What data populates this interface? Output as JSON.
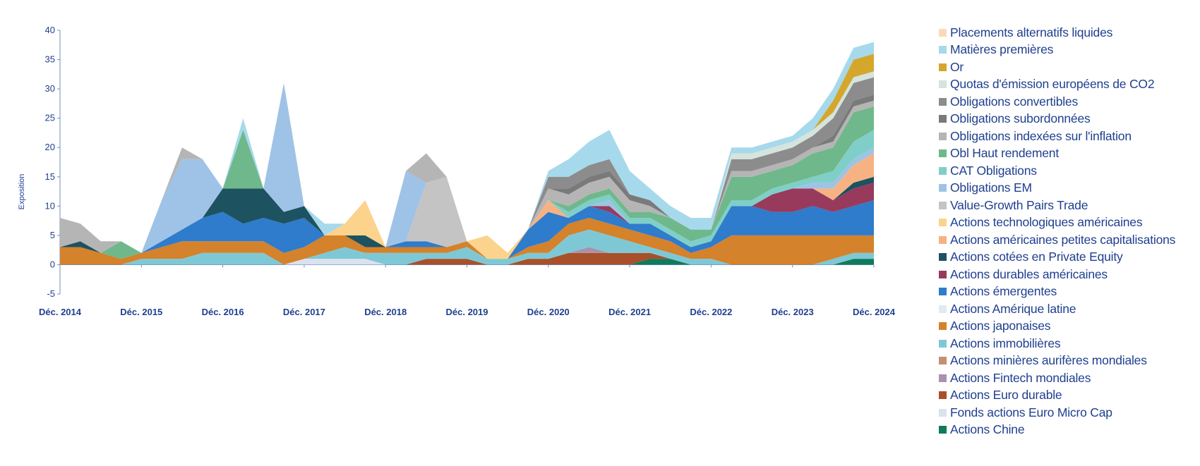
{
  "chart_data": {
    "type": "area",
    "stacked": true,
    "title": "",
    "xlabel": "",
    "ylabel": "Exposition",
    "ylim": [
      -5,
      40
    ],
    "yticks": [
      -5,
      0,
      5,
      10,
      15,
      20,
      25,
      30,
      35,
      40
    ],
    "xlim": [
      2014.92,
      2024.92
    ],
    "xticks": [
      2014.92,
      2015.92,
      2016.92,
      2017.92,
      2018.92,
      2019.92,
      2020.92,
      2021.92,
      2022.92,
      2023.92,
      2024.92
    ],
    "xtick_labels": [
      "Déc. 2014",
      "Déc. 2015",
      "Déc. 2016",
      "Déc. 2017",
      "Déc. 2018",
      "Déc. 2019",
      "Déc. 2020",
      "Déc. 2021",
      "Déc. 2022",
      "Déc. 2023",
      "Déc. 2024"
    ],
    "grid": false,
    "legend_position": "right",
    "x": [
      2014.92,
      2015.17,
      2015.42,
      2015.67,
      2015.92,
      2016.17,
      2016.42,
      2016.67,
      2016.92,
      2017.17,
      2017.42,
      2017.67,
      2017.92,
      2018.17,
      2018.42,
      2018.67,
      2018.92,
      2019.17,
      2019.42,
      2019.67,
      2019.92,
      2020.17,
      2020.42,
      2020.67,
      2020.92,
      2021.17,
      2021.42,
      2021.67,
      2021.92,
      2022.17,
      2022.42,
      2022.67,
      2022.92,
      2023.17,
      2023.42,
      2023.67,
      2023.92,
      2024.17,
      2024.42,
      2024.67,
      2024.92
    ],
    "series": [
      {
        "name": "Placements alternatifs liquides",
        "color": "#fbd9b8",
        "values": [
          0,
          0,
          0,
          0,
          0,
          0,
          0,
          0,
          0,
          0,
          0,
          0,
          0,
          0,
          0,
          0,
          0,
          0,
          0,
          0,
          0,
          0,
          0,
          0,
          0,
          0,
          0,
          0,
          0,
          0,
          0,
          0,
          0,
          0,
          0,
          0,
          0,
          0,
          0,
          0,
          0
        ]
      },
      {
        "name": "Matières premières",
        "color": "#a6d9ec",
        "values": [
          0,
          0,
          0,
          0,
          0,
          0,
          0,
          0,
          0,
          2,
          0,
          0,
          0,
          2,
          0,
          0,
          0,
          0,
          0,
          0,
          0,
          0,
          0,
          0,
          1,
          3,
          4,
          5,
          4,
          2,
          2,
          2,
          2,
          1,
          1,
          1,
          1,
          2,
          2,
          2,
          2
        ]
      },
      {
        "name": "Or",
        "color": "#d4a72c",
        "values": [
          0,
          0,
          0,
          0,
          0,
          0,
          0,
          0,
          0,
          0,
          0,
          0,
          0,
          0,
          0,
          0,
          0,
          0,
          0,
          0,
          0,
          0,
          0,
          0,
          0,
          0,
          0,
          0,
          0,
          0,
          0,
          0,
          0,
          0,
          0,
          0,
          0,
          0,
          2,
          3,
          3
        ]
      },
      {
        "name": "Quotas d'émission européens de CO2",
        "color": "#d5e4dc",
        "values": [
          0,
          0,
          0,
          0,
          0,
          0,
          0,
          0,
          0,
          0,
          0,
          0,
          0,
          0,
          0,
          0,
          0,
          0,
          0,
          0,
          0,
          0,
          0,
          0,
          0,
          0,
          0,
          0,
          0,
          0,
          0,
          0,
          0,
          1,
          1,
          1,
          1,
          1,
          1,
          1,
          1
        ]
      },
      {
        "name": "Obligations convertibles",
        "color": "#8c8c8c",
        "values": [
          0,
          0,
          0,
          0,
          0,
          0,
          0,
          0,
          0,
          0,
          0,
          0,
          0,
          0,
          0,
          0,
          0,
          0,
          0,
          0,
          0,
          0,
          0,
          0,
          2,
          2,
          2,
          2,
          0,
          0,
          0,
          0,
          0,
          2,
          2,
          2,
          2,
          2,
          3,
          3,
          3
        ]
      },
      {
        "name": "Obligations subordonnées",
        "color": "#7a7a7a",
        "values": [
          0,
          0,
          0,
          0,
          0,
          0,
          0,
          0,
          0,
          0,
          0,
          0,
          0,
          0,
          0,
          0,
          0,
          0,
          0,
          0,
          0,
          0,
          0,
          0,
          0,
          1,
          1,
          1,
          1,
          1,
          0,
          0,
          0,
          0,
          0,
          0,
          0,
          0,
          1,
          1,
          1
        ]
      },
      {
        "name": "Obligations indexées sur l'inflation",
        "color": "#b5b5b5",
        "values": [
          5,
          3,
          2,
          0,
          0,
          0,
          2,
          0,
          0,
          0,
          0,
          0,
          0,
          0,
          0,
          0,
          0,
          0,
          5,
          0,
          0,
          0,
          0,
          0,
          2,
          2,
          2,
          2,
          2,
          1,
          0,
          0,
          0,
          1,
          1,
          1,
          1,
          1,
          1,
          1,
          1
        ]
      },
      {
        "name": "Obl Haut rendement",
        "color": "#6fb88c",
        "values": [
          0,
          0,
          0,
          3,
          0,
          0,
          0,
          0,
          0,
          10,
          0,
          0,
          0,
          0,
          0,
          0,
          0,
          0,
          0,
          0,
          0,
          0,
          0,
          0,
          0,
          1,
          1,
          1,
          1,
          1,
          2,
          2,
          1,
          4,
          4,
          3,
          3,
          4,
          4,
          5,
          4
        ]
      },
      {
        "name": "CAT Obligations",
        "color": "#7fcfc8",
        "values": [
          0,
          0,
          0,
          0,
          0,
          0,
          0,
          0,
          0,
          0,
          0,
          0,
          0,
          0,
          0,
          0,
          0,
          0,
          0,
          0,
          0,
          0,
          0,
          0,
          0,
          1,
          1,
          1,
          1,
          1,
          1,
          1,
          1,
          1,
          1,
          1,
          1,
          1,
          2,
          3,
          3
        ]
      },
      {
        "name": "Obligations EM",
        "color": "#9fc3e6",
        "values": [
          0,
          0,
          0,
          0,
          0,
          7,
          12,
          10,
          0,
          0,
          0,
          22,
          0,
          0,
          0,
          0,
          0,
          12,
          0,
          0,
          0,
          0,
          0,
          0,
          0,
          0,
          0,
          1,
          0,
          0,
          0,
          0,
          0,
          0,
          0,
          0,
          0,
          1,
          1,
          1,
          1
        ]
      },
      {
        "name": "Value-Growth Pairs Trade",
        "color": "#c4c4c4",
        "values": [
          0,
          0,
          0,
          0,
          0,
          0,
          0,
          0,
          0,
          0,
          0,
          0,
          0,
          0,
          0,
          0,
          0,
          0,
          10,
          12,
          0,
          0,
          0,
          0,
          0,
          0,
          0,
          0,
          0,
          0,
          0,
          0,
          0,
          0,
          0,
          0,
          0,
          0,
          0,
          0,
          0
        ]
      },
      {
        "name": "Actions technologiques américaines",
        "color": "#fbd38c",
        "values": [
          0,
          0,
          0,
          0,
          0,
          0,
          0,
          0,
          0,
          0,
          0,
          0,
          0,
          0,
          2,
          6,
          0,
          0,
          0,
          0,
          0,
          4,
          1,
          0,
          0,
          0,
          0,
          0,
          0,
          0,
          0,
          0,
          0,
          0,
          0,
          0,
          0,
          0,
          0,
          0,
          0
        ]
      },
      {
        "name": "Actions américaines petites capitalisations",
        "color": "#f7b283",
        "values": [
          0,
          0,
          0,
          0,
          0,
          0,
          0,
          0,
          0,
          0,
          0,
          0,
          0,
          0,
          0,
          0,
          0,
          0,
          0,
          0,
          0,
          0,
          0,
          0,
          2,
          0,
          0,
          0,
          0,
          0,
          0,
          0,
          0,
          0,
          0,
          0,
          0,
          0,
          2,
          3,
          4
        ]
      },
      {
        "name": "Actions cotées en Private Equity",
        "color": "#1d5260",
        "values": [
          0,
          1,
          0,
          0,
          0,
          0,
          0,
          0,
          4,
          6,
          5,
          2,
          2,
          0,
          0,
          2,
          0,
          0,
          0,
          0,
          0,
          0,
          0,
          0,
          0,
          0,
          0,
          0,
          0,
          0,
          0,
          0,
          0,
          0,
          0,
          0,
          0,
          0,
          0,
          1,
          1
        ]
      },
      {
        "name": "Actions durables américaines",
        "color": "#983a5c",
        "values": [
          0,
          0,
          0,
          0,
          0,
          0,
          0,
          0,
          0,
          0,
          0,
          0,
          0,
          0,
          0,
          0,
          0,
          0,
          0,
          0,
          0,
          0,
          0,
          0,
          0,
          0,
          0,
          1,
          0,
          0,
          0,
          0,
          0,
          0,
          0,
          3,
          4,
          3,
          2,
          3,
          3
        ]
      },
      {
        "name": "Actions émergentes",
        "color": "#2f7bcc",
        "values": [
          0,
          0,
          0,
          0,
          0,
          1,
          2,
          4,
          5,
          3,
          4,
          5,
          5,
          0,
          0,
          0,
          0,
          1,
          1,
          0,
          0,
          0,
          0,
          3,
          5,
          1,
          2,
          2,
          1,
          2,
          1,
          1,
          1,
          5,
          5,
          4,
          4,
          5,
          4,
          5,
          6
        ]
      },
      {
        "name": "Actions Amérique latine",
        "color": "#e1e9f1",
        "values": [
          0,
          0,
          0,
          0,
          0,
          0,
          0,
          0,
          0,
          0,
          0,
          0,
          0,
          0,
          0,
          0,
          0,
          0,
          0,
          0,
          0,
          0,
          0,
          0,
          0,
          0,
          0,
          0,
          0,
          0,
          0,
          0,
          0,
          0,
          0,
          0,
          0,
          0,
          0,
          0,
          0
        ]
      },
      {
        "name": "Actions japonaises",
        "color": "#d4822b",
        "values": [
          3,
          3,
          2,
          1,
          1,
          2,
          3,
          2,
          2,
          2,
          2,
          2,
          2,
          3,
          2,
          1,
          1,
          1,
          1,
          1,
          1,
          0,
          0,
          1,
          2,
          2,
          2,
          2,
          2,
          2,
          2,
          1,
          2,
          5,
          5,
          5,
          5,
          5,
          4,
          3,
          3
        ]
      },
      {
        "name": "Actions immobilières",
        "color": "#7ec8d6",
        "values": [
          0,
          0,
          0,
          0,
          1,
          1,
          1,
          2,
          2,
          2,
          2,
          0,
          0,
          1,
          2,
          1,
          2,
          2,
          1,
          1,
          2,
          1,
          1,
          1,
          1,
          3,
          3,
          3,
          2,
          1,
          1,
          1,
          1,
          0,
          0,
          0,
          0,
          0,
          1,
          1,
          1
        ]
      },
      {
        "name": "Actions minières aurifères mondiales",
        "color": "#c48f73",
        "values": [
          0,
          0,
          0,
          0,
          0,
          0,
          0,
          0,
          0,
          0,
          0,
          0,
          0,
          0,
          0,
          0,
          0,
          0,
          0,
          0,
          0,
          0,
          0,
          0,
          0,
          0,
          0,
          0,
          0,
          0,
          0,
          0,
          0,
          0,
          0,
          0,
          0,
          0,
          0,
          0,
          0
        ]
      },
      {
        "name": "Actions Fintech mondiales",
        "color": "#a892ad",
        "values": [
          0,
          0,
          0,
          0,
          0,
          0,
          0,
          0,
          0,
          0,
          0,
          0,
          0,
          0,
          0,
          0,
          0,
          0,
          0,
          0,
          0,
          0,
          0,
          0,
          0,
          0,
          1,
          0,
          0,
          0,
          0,
          0,
          0,
          0,
          0,
          0,
          0,
          0,
          0,
          0,
          0
        ]
      },
      {
        "name": "Actions Euro durable",
        "color": "#a8502a",
        "values": [
          0,
          0,
          0,
          0,
          0,
          0,
          0,
          0,
          0,
          0,
          0,
          0,
          0,
          0,
          0,
          0,
          0,
          0,
          1,
          1,
          1,
          0,
          0,
          1,
          1,
          2,
          2,
          2,
          2,
          1,
          0,
          0,
          0,
          0,
          0,
          0,
          0,
          0,
          0,
          0,
          0
        ]
      },
      {
        "name": "Fonds actions Euro Micro Cap",
        "color": "#d9e2ee",
        "values": [
          0,
          0,
          0,
          0,
          0,
          0,
          0,
          0,
          0,
          0,
          0,
          0,
          1,
          1,
          1,
          1,
          0,
          0,
          0,
          0,
          0,
          0,
          0,
          0,
          0,
          0,
          0,
          0,
          0,
          0,
          0,
          0,
          0,
          0,
          0,
          0,
          0,
          0,
          0,
          0,
          0
        ]
      },
      {
        "name": "Actions Chine",
        "color": "#0f7a5c",
        "values": [
          0,
          0,
          0,
          0,
          0,
          0,
          0,
          0,
          0,
          0,
          0,
          0,
          0,
          0,
          0,
          0,
          0,
          0,
          0,
          0,
          0,
          0,
          0,
          0,
          0,
          0,
          0,
          0,
          0,
          1,
          1,
          0,
          0,
          0,
          0,
          0,
          0,
          0,
          0,
          1,
          1
        ]
      }
    ]
  }
}
